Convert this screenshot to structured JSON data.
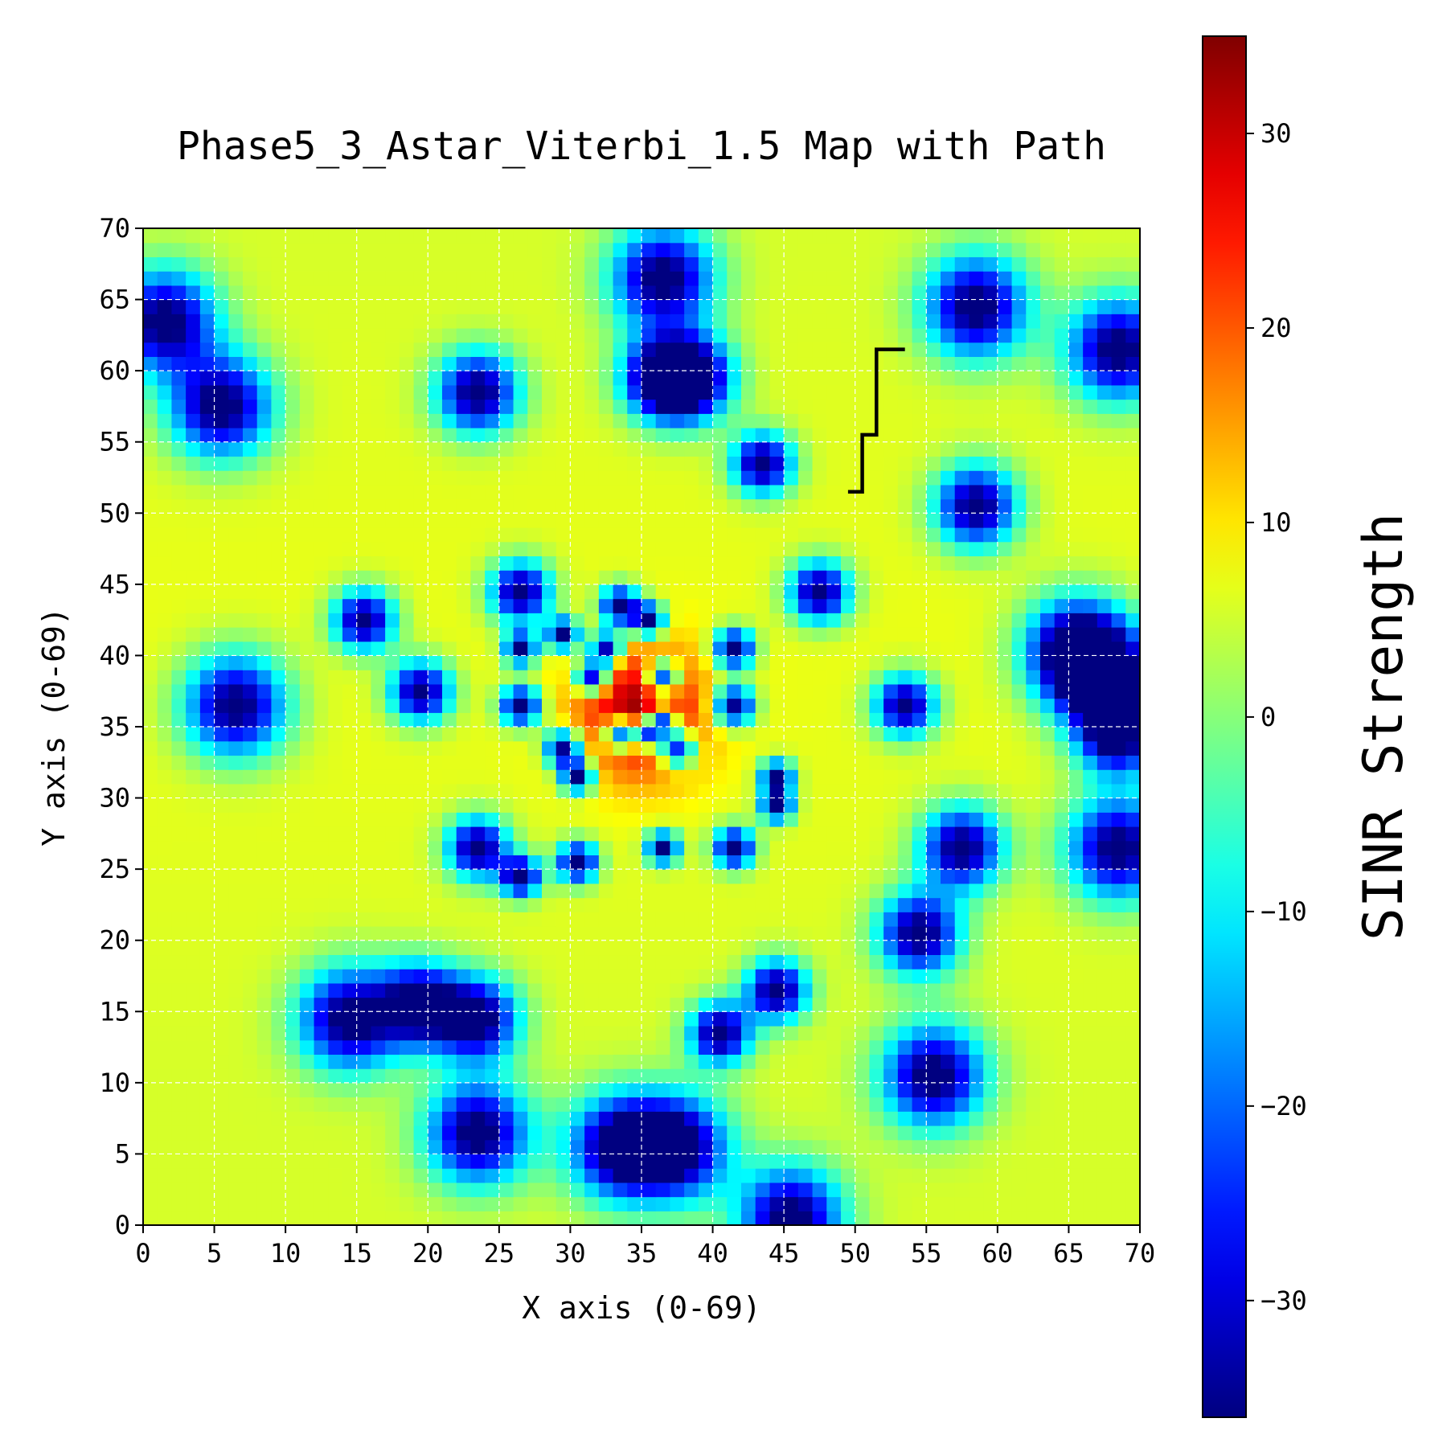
{
  "chart_data": {
    "type": "heatmap",
    "title": "Phase5_3_Astar_Viterbi_1.5 Map with Path",
    "xlabel": "X axis (0-69)",
    "ylabel": "Y axis (0-69)",
    "xlim": [
      0,
      70
    ],
    "ylim": [
      0,
      70
    ],
    "x_ticks": [
      "0",
      "5",
      "10",
      "15",
      "20",
      "25",
      "30",
      "35",
      "40",
      "45",
      "50",
      "55",
      "60",
      "65",
      "70"
    ],
    "y_ticks": [
      "0",
      "5",
      "10",
      "15",
      "20",
      "25",
      "30",
      "35",
      "40",
      "45",
      "50",
      "55",
      "60",
      "65",
      "70"
    ],
    "grid": true,
    "grid_resolution": [
      70,
      70
    ],
    "colormap": "jet",
    "colorbar": {
      "label": "SINR Strength",
      "range": [
        -36,
        35
      ],
      "ticks": [
        "30",
        "20",
        "10",
        "0",
        "−10",
        "−20",
        "−30"
      ],
      "tick_values": [
        30,
        20,
        10,
        0,
        -10,
        -20,
        -30
      ]
    },
    "background_sinr": 7,
    "hotspot": {
      "x": 35,
      "y": 36,
      "peak": 35
    },
    "low_sinr_spots": [
      {
        "x": 36.5,
        "y": 66.5,
        "r": 2.5
      },
      {
        "x": 1.5,
        "y": 63.5,
        "r": 2.5
      },
      {
        "x": 58.5,
        "y": 64.5,
        "r": 2.5
      },
      {
        "x": 68.5,
        "y": 61.5,
        "r": 2.5
      },
      {
        "x": 5.5,
        "y": 57.5,
        "r": 2.5
      },
      {
        "x": 23.5,
        "y": 58.5,
        "r": 2
      },
      {
        "x": 36.5,
        "y": 59.5,
        "r": 2
      },
      {
        "x": 38.5,
        "y": 59.5,
        "r": 2
      },
      {
        "x": 43.5,
        "y": 53.5,
        "r": 1.5
      },
      {
        "x": 58.5,
        "y": 50.5,
        "r": 2
      },
      {
        "x": 26.5,
        "y": 44.5,
        "r": 1.5
      },
      {
        "x": 33.5,
        "y": 43.5,
        "r": 1
      },
      {
        "x": 47.5,
        "y": 44.5,
        "r": 1.5
      },
      {
        "x": 15.5,
        "y": 42.5,
        "r": 1.5
      },
      {
        "x": 35.5,
        "y": 42.5,
        "r": 0.8
      },
      {
        "x": 29.5,
        "y": 41.5,
        "r": 0.8
      },
      {
        "x": 26.5,
        "y": 40.5,
        "r": 0.8
      },
      {
        "x": 32.5,
        "y": 40.5,
        "r": 0.8
      },
      {
        "x": 41.5,
        "y": 40.5,
        "r": 1
      },
      {
        "x": 65.5,
        "y": 40.5,
        "r": 2.5
      },
      {
        "x": 67.5,
        "y": 38.5,
        "r": 2.5
      },
      {
        "x": 19.5,
        "y": 37.5,
        "r": 1.5
      },
      {
        "x": 31.5,
        "y": 38.5,
        "r": 0.8
      },
      {
        "x": 36.5,
        "y": 38.5,
        "r": 0.8
      },
      {
        "x": 6.5,
        "y": 36.5,
        "r": 2.5
      },
      {
        "x": 26.5,
        "y": 36.5,
        "r": 1
      },
      {
        "x": 41.5,
        "y": 36.5,
        "r": 1
      },
      {
        "x": 53.5,
        "y": 36.5,
        "r": 1.5
      },
      {
        "x": 36.5,
        "y": 35.5,
        "r": 0.7
      },
      {
        "x": 68.5,
        "y": 34.5,
        "r": 2
      },
      {
        "x": 33.5,
        "y": 34.5,
        "r": 0.8
      },
      {
        "x": 35.5,
        "y": 34.5,
        "r": 0.7
      },
      {
        "x": 29.5,
        "y": 33.5,
        "r": 0.9
      },
      {
        "x": 37.5,
        "y": 33.5,
        "r": 0.9
      },
      {
        "x": 30.5,
        "y": 31.5,
        "r": 0.8
      },
      {
        "x": 44.5,
        "y": 31.5,
        "r": 0.8
      },
      {
        "x": 44.5,
        "y": 29.5,
        "r": 0.8
      },
      {
        "x": 23.5,
        "y": 26.5,
        "r": 1.5
      },
      {
        "x": 36.5,
        "y": 26.5,
        "r": 0.8
      },
      {
        "x": 41.5,
        "y": 26.5,
        "r": 1
      },
      {
        "x": 57.5,
        "y": 26.5,
        "r": 2
      },
      {
        "x": 68.5,
        "y": 26.5,
        "r": 2.5
      },
      {
        "x": 30.5,
        "y": 25.5,
        "r": 1
      },
      {
        "x": 26.5,
        "y": 24.5,
        "r": 1
      },
      {
        "x": 54.5,
        "y": 20.5,
        "r": 2
      },
      {
        "x": 44.5,
        "y": 16.5,
        "r": 1.5
      },
      {
        "x": 19.5,
        "y": 15.5,
        "r": 2
      },
      {
        "x": 14.5,
        "y": 14.5,
        "r": 2.5
      },
      {
        "x": 23.5,
        "y": 14.5,
        "r": 2
      },
      {
        "x": 40.5,
        "y": 13.5,
        "r": 1.5
      },
      {
        "x": 55.5,
        "y": 10.5,
        "r": 2.5
      },
      {
        "x": 23.5,
        "y": 6.5,
        "r": 2.5
      },
      {
        "x": 33.5,
        "y": 5.5,
        "r": 2.5
      },
      {
        "x": 37.5,
        "y": 5.5,
        "r": 2.5
      },
      {
        "x": 45.5,
        "y": 0.5,
        "r": 2.5
      }
    ],
    "path": {
      "x": [
        49.5,
        50.5,
        50.5,
        51.5,
        51.5,
        53.5
      ],
      "y": [
        51.5,
        51.5,
        55.5,
        55.5,
        61.5,
        61.5
      ],
      "color": "#000000"
    }
  }
}
